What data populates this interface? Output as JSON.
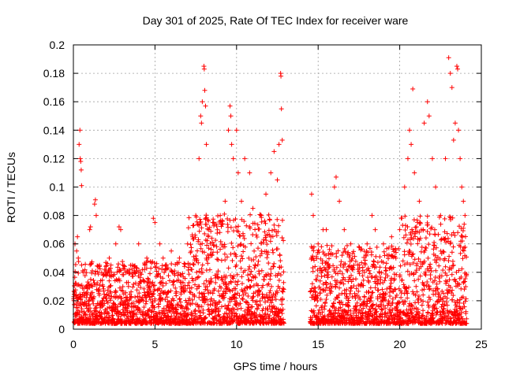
{
  "chart_data": {
    "type": "scatter",
    "title": "Day 301 of 2025, Rate Of TEC Index for receiver ware",
    "xlabel": "GPS time / hours",
    "ylabel": "ROTI / TECUs",
    "xlim": [
      0,
      25
    ],
    "ylim": [
      0,
      0.2
    ],
    "x_ticks": [
      "0",
      "5",
      "10",
      "15",
      "20",
      "25"
    ],
    "y_ticks": [
      "0",
      "0.02",
      "0.04",
      "0.06",
      "0.08",
      "0.1",
      "0.12",
      "0.14",
      "0.16",
      "0.18",
      "0.2"
    ],
    "grid": true,
    "marker": "+",
    "color": "#ff0000",
    "data_gap_hours": [
      12.9,
      14.5
    ],
    "series": [
      {
        "points": [
          [
            0.1,
            0.06
          ],
          [
            0.2,
            0.055
          ],
          [
            0.25,
            0.065
          ],
          [
            0.3,
            0.05
          ],
          [
            0.35,
            0.13
          ],
          [
            0.4,
            0.14
          ],
          [
            0.42,
            0.12
          ],
          [
            0.45,
            0.118
          ],
          [
            0.48,
            0.112
          ],
          [
            0.5,
            0.101
          ],
          [
            0.6,
            0.04
          ],
          [
            0.8,
            0.03
          ],
          [
            1.0,
            0.07
          ],
          [
            1.05,
            0.072
          ],
          [
            1.3,
            0.088
          ],
          [
            1.35,
            0.091
          ],
          [
            1.4,
            0.08
          ],
          [
            1.6,
            0.045
          ],
          [
            2.0,
            0.04
          ],
          [
            2.2,
            0.05
          ],
          [
            2.6,
            0.06
          ],
          [
            2.8,
            0.072
          ],
          [
            2.9,
            0.07
          ],
          [
            3.2,
            0.04
          ],
          [
            3.5,
            0.045
          ],
          [
            4.0,
            0.06
          ],
          [
            4.5,
            0.05
          ],
          [
            4.9,
            0.078
          ],
          [
            5.0,
            0.075
          ],
          [
            5.3,
            0.06
          ],
          [
            5.5,
            0.05
          ],
          [
            6.0,
            0.055
          ],
          [
            6.5,
            0.05
          ],
          [
            7.0,
            0.06
          ],
          [
            7.3,
            0.065
          ],
          [
            7.5,
            0.08
          ],
          [
            7.7,
            0.12
          ],
          [
            7.8,
            0.15
          ],
          [
            7.85,
            0.145
          ],
          [
            7.9,
            0.16
          ],
          [
            8.0,
            0.185
          ],
          [
            8.02,
            0.183
          ],
          [
            8.05,
            0.168
          ],
          [
            8.1,
            0.157
          ],
          [
            8.15,
            0.13
          ],
          [
            8.3,
            0.07
          ],
          [
            8.6,
            0.075
          ],
          [
            9.0,
            0.08
          ],
          [
            9.3,
            0.09
          ],
          [
            9.5,
            0.14
          ],
          [
            9.6,
            0.157
          ],
          [
            9.65,
            0.15
          ],
          [
            9.7,
            0.13
          ],
          [
            9.8,
            0.12
          ],
          [
            10.0,
            0.14
          ],
          [
            10.1,
            0.11
          ],
          [
            10.3,
            0.09
          ],
          [
            10.5,
            0.12
          ],
          [
            10.8,
            0.11
          ],
          [
            11.0,
            0.085
          ],
          [
            11.5,
            0.08
          ],
          [
            11.8,
            0.095
          ],
          [
            12.1,
            0.11
          ],
          [
            12.3,
            0.125
          ],
          [
            12.5,
            0.105
          ],
          [
            12.6,
            0.13
          ],
          [
            12.7,
            0.18
          ],
          [
            12.72,
            0.178
          ],
          [
            12.75,
            0.155
          ],
          [
            12.8,
            0.133
          ],
          [
            14.6,
            0.095
          ],
          [
            14.7,
            0.08
          ],
          [
            15.0,
            0.06
          ],
          [
            15.3,
            0.07
          ],
          [
            15.5,
            0.07
          ],
          [
            16.0,
            0.1
          ],
          [
            16.1,
            0.107
          ],
          [
            16.3,
            0.09
          ],
          [
            16.6,
            0.07
          ],
          [
            17.0,
            0.06
          ],
          [
            17.5,
            0.058
          ],
          [
            18.0,
            0.06
          ],
          [
            18.3,
            0.08
          ],
          [
            18.5,
            0.07
          ],
          [
            19.0,
            0.06
          ],
          [
            19.5,
            0.065
          ],
          [
            20.0,
            0.07
          ],
          [
            20.3,
            0.1
          ],
          [
            20.5,
            0.12
          ],
          [
            20.6,
            0.14
          ],
          [
            20.7,
            0.13
          ],
          [
            20.8,
            0.169
          ],
          [
            20.9,
            0.11
          ],
          [
            21.2,
            0.09
          ],
          [
            21.5,
            0.145
          ],
          [
            21.7,
            0.16
          ],
          [
            21.8,
            0.15
          ],
          [
            22.0,
            0.12
          ],
          [
            22.2,
            0.1
          ],
          [
            22.5,
            0.08
          ],
          [
            22.8,
            0.12
          ],
          [
            23.0,
            0.191
          ],
          [
            23.1,
            0.18
          ],
          [
            23.2,
            0.17
          ],
          [
            23.3,
            0.133
          ],
          [
            23.4,
            0.145
          ],
          [
            23.5,
            0.185
          ],
          [
            23.55,
            0.183
          ],
          [
            23.6,
            0.14
          ],
          [
            23.7,
            0.12
          ],
          [
            23.8,
            0.1
          ],
          [
            23.9,
            0.09
          ],
          [
            24.0,
            0.08
          ]
        ]
      }
    ]
  }
}
